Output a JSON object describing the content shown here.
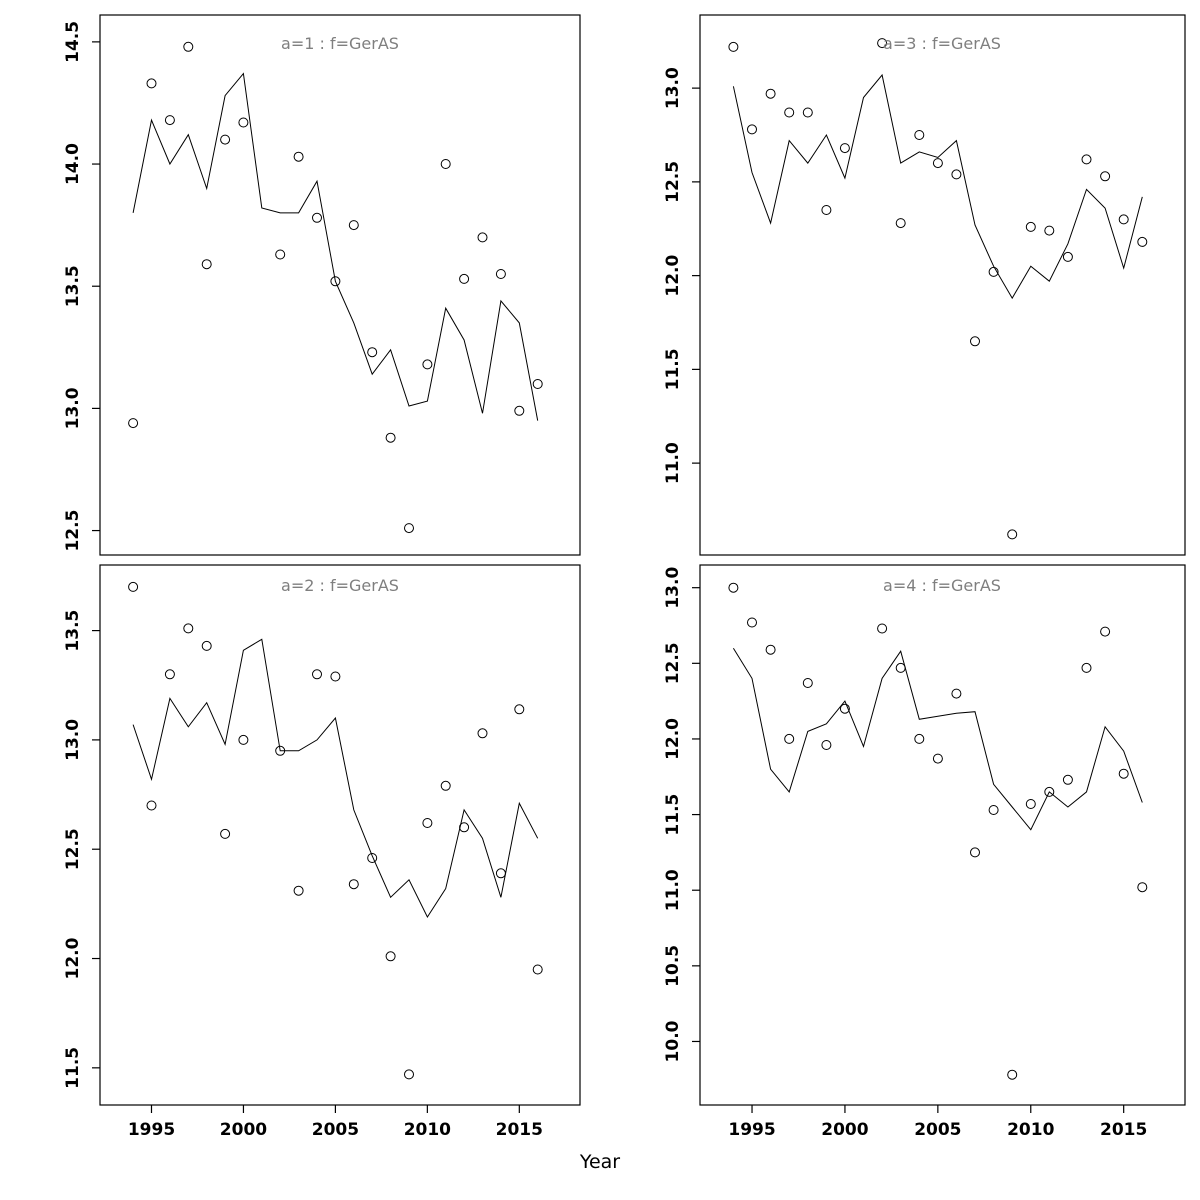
{
  "figure": {
    "xlabel": "Year"
  },
  "colors": {
    "axis": "#000000",
    "line": "#000000",
    "point": "#000000",
    "title": "#7f7f7f",
    "background": "#ffffff"
  },
  "chart_data": [
    {
      "type": "scatter",
      "panel_label": "a=1",
      "title": "a=1 : f=GerAS",
      "x": [
        1994,
        1995,
        1996,
        1997,
        1998,
        1999,
        2000,
        2001,
        2002,
        2003,
        2004,
        2005,
        2006,
        2007,
        2008,
        2009,
        2010,
        2011,
        2012,
        2013,
        2014,
        2015,
        2016
      ],
      "points": [
        12.94,
        14.33,
        14.18,
        14.48,
        13.59,
        14.1,
        14.17,
        null,
        13.63,
        14.03,
        13.78,
        13.52,
        13.75,
        13.23,
        12.88,
        12.51,
        13.18,
        14.0,
        13.53,
        13.7,
        13.55,
        12.99,
        13.1
      ],
      "line": [
        13.8,
        14.18,
        14.0,
        14.12,
        13.9,
        14.28,
        14.37,
        13.82,
        13.8,
        13.8,
        13.93,
        13.52,
        13.35,
        13.14,
        13.24,
        13.01,
        13.03,
        13.41,
        13.28,
        12.98,
        13.44,
        13.35,
        12.95
      ],
      "xlim": [
        1992.2,
        2018.3
      ],
      "ylim": [
        12.4,
        14.61
      ],
      "ytick_values": [
        12.5,
        13.0,
        13.5,
        14.0,
        14.5
      ],
      "yticks": [
        "12.5",
        "13.0",
        "13.5",
        "14.0",
        "14.5"
      ],
      "xtick_values": [
        1995,
        2000,
        2005,
        2010,
        2015
      ],
      "xticks": [
        "1995",
        "2000",
        "2005",
        "2010",
        "2015"
      ],
      "show_x_labels": false,
      "grid": false,
      "legend": "none"
    },
    {
      "type": "scatter",
      "panel_label": "a=3",
      "title": "a=3 : f=GerAS",
      "x": [
        1994,
        1995,
        1996,
        1997,
        1998,
        1999,
        2000,
        2001,
        2002,
        2003,
        2004,
        2005,
        2006,
        2007,
        2008,
        2009,
        2010,
        2011,
        2012,
        2013,
        2014,
        2015,
        2016
      ],
      "points": [
        13.22,
        12.78,
        12.97,
        12.87,
        12.87,
        12.35,
        12.68,
        null,
        13.24,
        12.28,
        12.75,
        12.6,
        12.54,
        11.65,
        12.02,
        10.62,
        12.26,
        12.24,
        12.1,
        12.62,
        12.53,
        12.3,
        12.18
      ],
      "line": [
        13.01,
        12.55,
        12.28,
        12.72,
        12.6,
        12.75,
        12.52,
        12.95,
        13.07,
        12.6,
        12.66,
        12.63,
        12.72,
        12.27,
        12.05,
        11.88,
        12.05,
        11.97,
        12.17,
        12.46,
        12.36,
        12.04,
        12.42
      ],
      "xlim": [
        1992.2,
        2018.3
      ],
      "ylim": [
        10.51,
        13.39
      ],
      "ytick_values": [
        11.0,
        11.5,
        12.0,
        12.5,
        13.0
      ],
      "yticks": [
        "11.0",
        "11.5",
        "12.0",
        "12.5",
        "13.0"
      ],
      "xtick_values": [
        1995,
        2000,
        2005,
        2010,
        2015
      ],
      "xticks": [
        "1995",
        "2000",
        "2005",
        "2010",
        "2015"
      ],
      "show_x_labels": false,
      "grid": false,
      "legend": "none"
    },
    {
      "type": "scatter",
      "panel_label": "a=2",
      "title": "a=2 : f=GerAS",
      "x": [
        1994,
        1995,
        1996,
        1997,
        1998,
        1999,
        2000,
        2001,
        2002,
        2003,
        2004,
        2005,
        2006,
        2007,
        2008,
        2009,
        2010,
        2011,
        2012,
        2013,
        2014,
        2015,
        2016
      ],
      "points": [
        13.7,
        12.7,
        13.3,
        13.51,
        13.43,
        12.57,
        13.0,
        null,
        12.95,
        12.31,
        13.3,
        13.29,
        12.34,
        12.46,
        12.01,
        11.47,
        12.62,
        12.79,
        12.6,
        13.03,
        12.39,
        13.14,
        11.95
      ],
      "line": [
        13.07,
        12.82,
        13.19,
        13.06,
        13.17,
        12.98,
        13.41,
        13.46,
        12.95,
        12.95,
        13.0,
        13.1,
        12.68,
        12.47,
        12.28,
        12.36,
        12.19,
        12.32,
        12.68,
        12.55,
        12.28,
        12.71,
        12.55
      ],
      "xlim": [
        1992.2,
        2018.3
      ],
      "ylim": [
        11.33,
        13.8
      ],
      "ytick_values": [
        11.5,
        12.0,
        12.5,
        13.0,
        13.5
      ],
      "yticks": [
        "11.5",
        "12.0",
        "12.5",
        "13.0",
        "13.5"
      ],
      "xtick_values": [
        1995,
        2000,
        2005,
        2010,
        2015
      ],
      "xticks": [
        "1995",
        "2000",
        "2005",
        "2010",
        "2015"
      ],
      "show_x_labels": true,
      "grid": false,
      "legend": "none"
    },
    {
      "type": "scatter",
      "panel_label": "a=4",
      "title": "a=4 : f=GerAS",
      "x": [
        1994,
        1995,
        1996,
        1997,
        1998,
        1999,
        2000,
        2001,
        2002,
        2003,
        2004,
        2005,
        2006,
        2007,
        2008,
        2009,
        2010,
        2011,
        2012,
        2013,
        2014,
        2015,
        2016
      ],
      "points": [
        13.0,
        12.77,
        12.59,
        12.0,
        12.37,
        11.96,
        12.2,
        null,
        12.73,
        12.47,
        12.0,
        11.87,
        12.3,
        11.25,
        11.53,
        9.78,
        11.57,
        11.65,
        11.73,
        12.47,
        12.71,
        11.77,
        11.02
      ],
      "line": [
        12.6,
        12.4,
        11.8,
        11.65,
        12.05,
        12.1,
        12.25,
        11.95,
        12.4,
        12.58,
        12.13,
        12.15,
        12.17,
        12.18,
        11.7,
        11.55,
        11.4,
        11.65,
        11.55,
        11.65,
        12.08,
        11.92,
        11.58
      ],
      "xlim": [
        1992.2,
        2018.3
      ],
      "ylim": [
        9.58,
        13.15
      ],
      "ytick_values": [
        10.0,
        10.5,
        11.0,
        11.5,
        12.0,
        12.5,
        13.0
      ],
      "yticks": [
        "10.0",
        "10.5",
        "11.0",
        "11.5",
        "12.0",
        "12.5",
        "13.0"
      ],
      "xtick_values": [
        1995,
        2000,
        2005,
        2010,
        2015
      ],
      "xticks": [
        "1995",
        "2000",
        "2005",
        "2010",
        "2015"
      ],
      "show_x_labels": true,
      "grid": false,
      "legend": "none"
    }
  ]
}
